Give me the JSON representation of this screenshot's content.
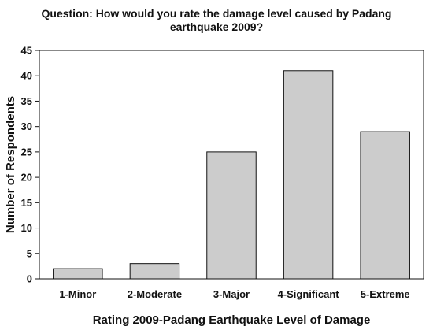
{
  "chart_data": {
    "type": "bar",
    "title": "Question: How would you rate the damage level caused by Padang\nearthquake 2009?",
    "xlabel": "Rating 2009-Padang Earthquake Level of  Damage",
    "ylabel": "Number of Respondents",
    "categories": [
      "1-Minor",
      "2-Moderate",
      "3-Major",
      "4-Significant",
      "5-Extreme"
    ],
    "values": [
      2,
      3,
      25,
      41,
      29
    ],
    "ylim": [
      0,
      45
    ],
    "yticks": [
      0,
      5,
      10,
      15,
      20,
      25,
      30,
      35,
      40,
      45
    ],
    "ytick_labels": [
      "0",
      "5",
      "10",
      "15",
      "20",
      "25",
      "30",
      "35",
      "40",
      "45"
    ],
    "grid": false,
    "legend": "none",
    "colors": {
      "bar_fill": "#cccccc",
      "bar_stroke": "#111111",
      "axis": "#111111",
      "background": "#ffffff"
    }
  }
}
